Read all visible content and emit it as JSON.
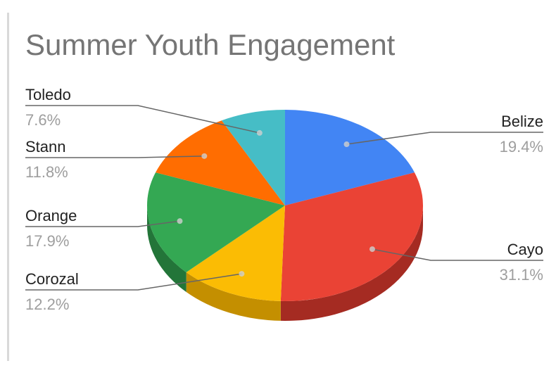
{
  "chart_data": {
    "type": "pie",
    "title": "Summer Youth Engagement",
    "three_d": true,
    "legend": "labels",
    "slices": [
      {
        "label": "Belize",
        "value": 19.4,
        "value_label": "19.4%",
        "color": "#4285F4",
        "side_color": "#2a5db0"
      },
      {
        "label": "Cayo",
        "value": 31.1,
        "value_label": "31.1%",
        "color": "#EA4335",
        "side_color": "#a52b22"
      },
      {
        "label": "Corozal",
        "value": 12.2,
        "value_label": "12.2%",
        "color": "#FBBC04",
        "side_color": "#c48f00"
      },
      {
        "label": "Orange",
        "value": 17.9,
        "value_label": "17.9%",
        "color": "#34A853",
        "side_color": "#237539"
      },
      {
        "label": "Stann",
        "value": 11.8,
        "value_label": "11.8%",
        "color": "#FF6D01",
        "side_color": "#c25200"
      },
      {
        "label": "Toledo",
        "value": 7.6,
        "value_label": "7.6%",
        "color": "#46BDC6",
        "side_color": "#2f8d94"
      }
    ]
  }
}
